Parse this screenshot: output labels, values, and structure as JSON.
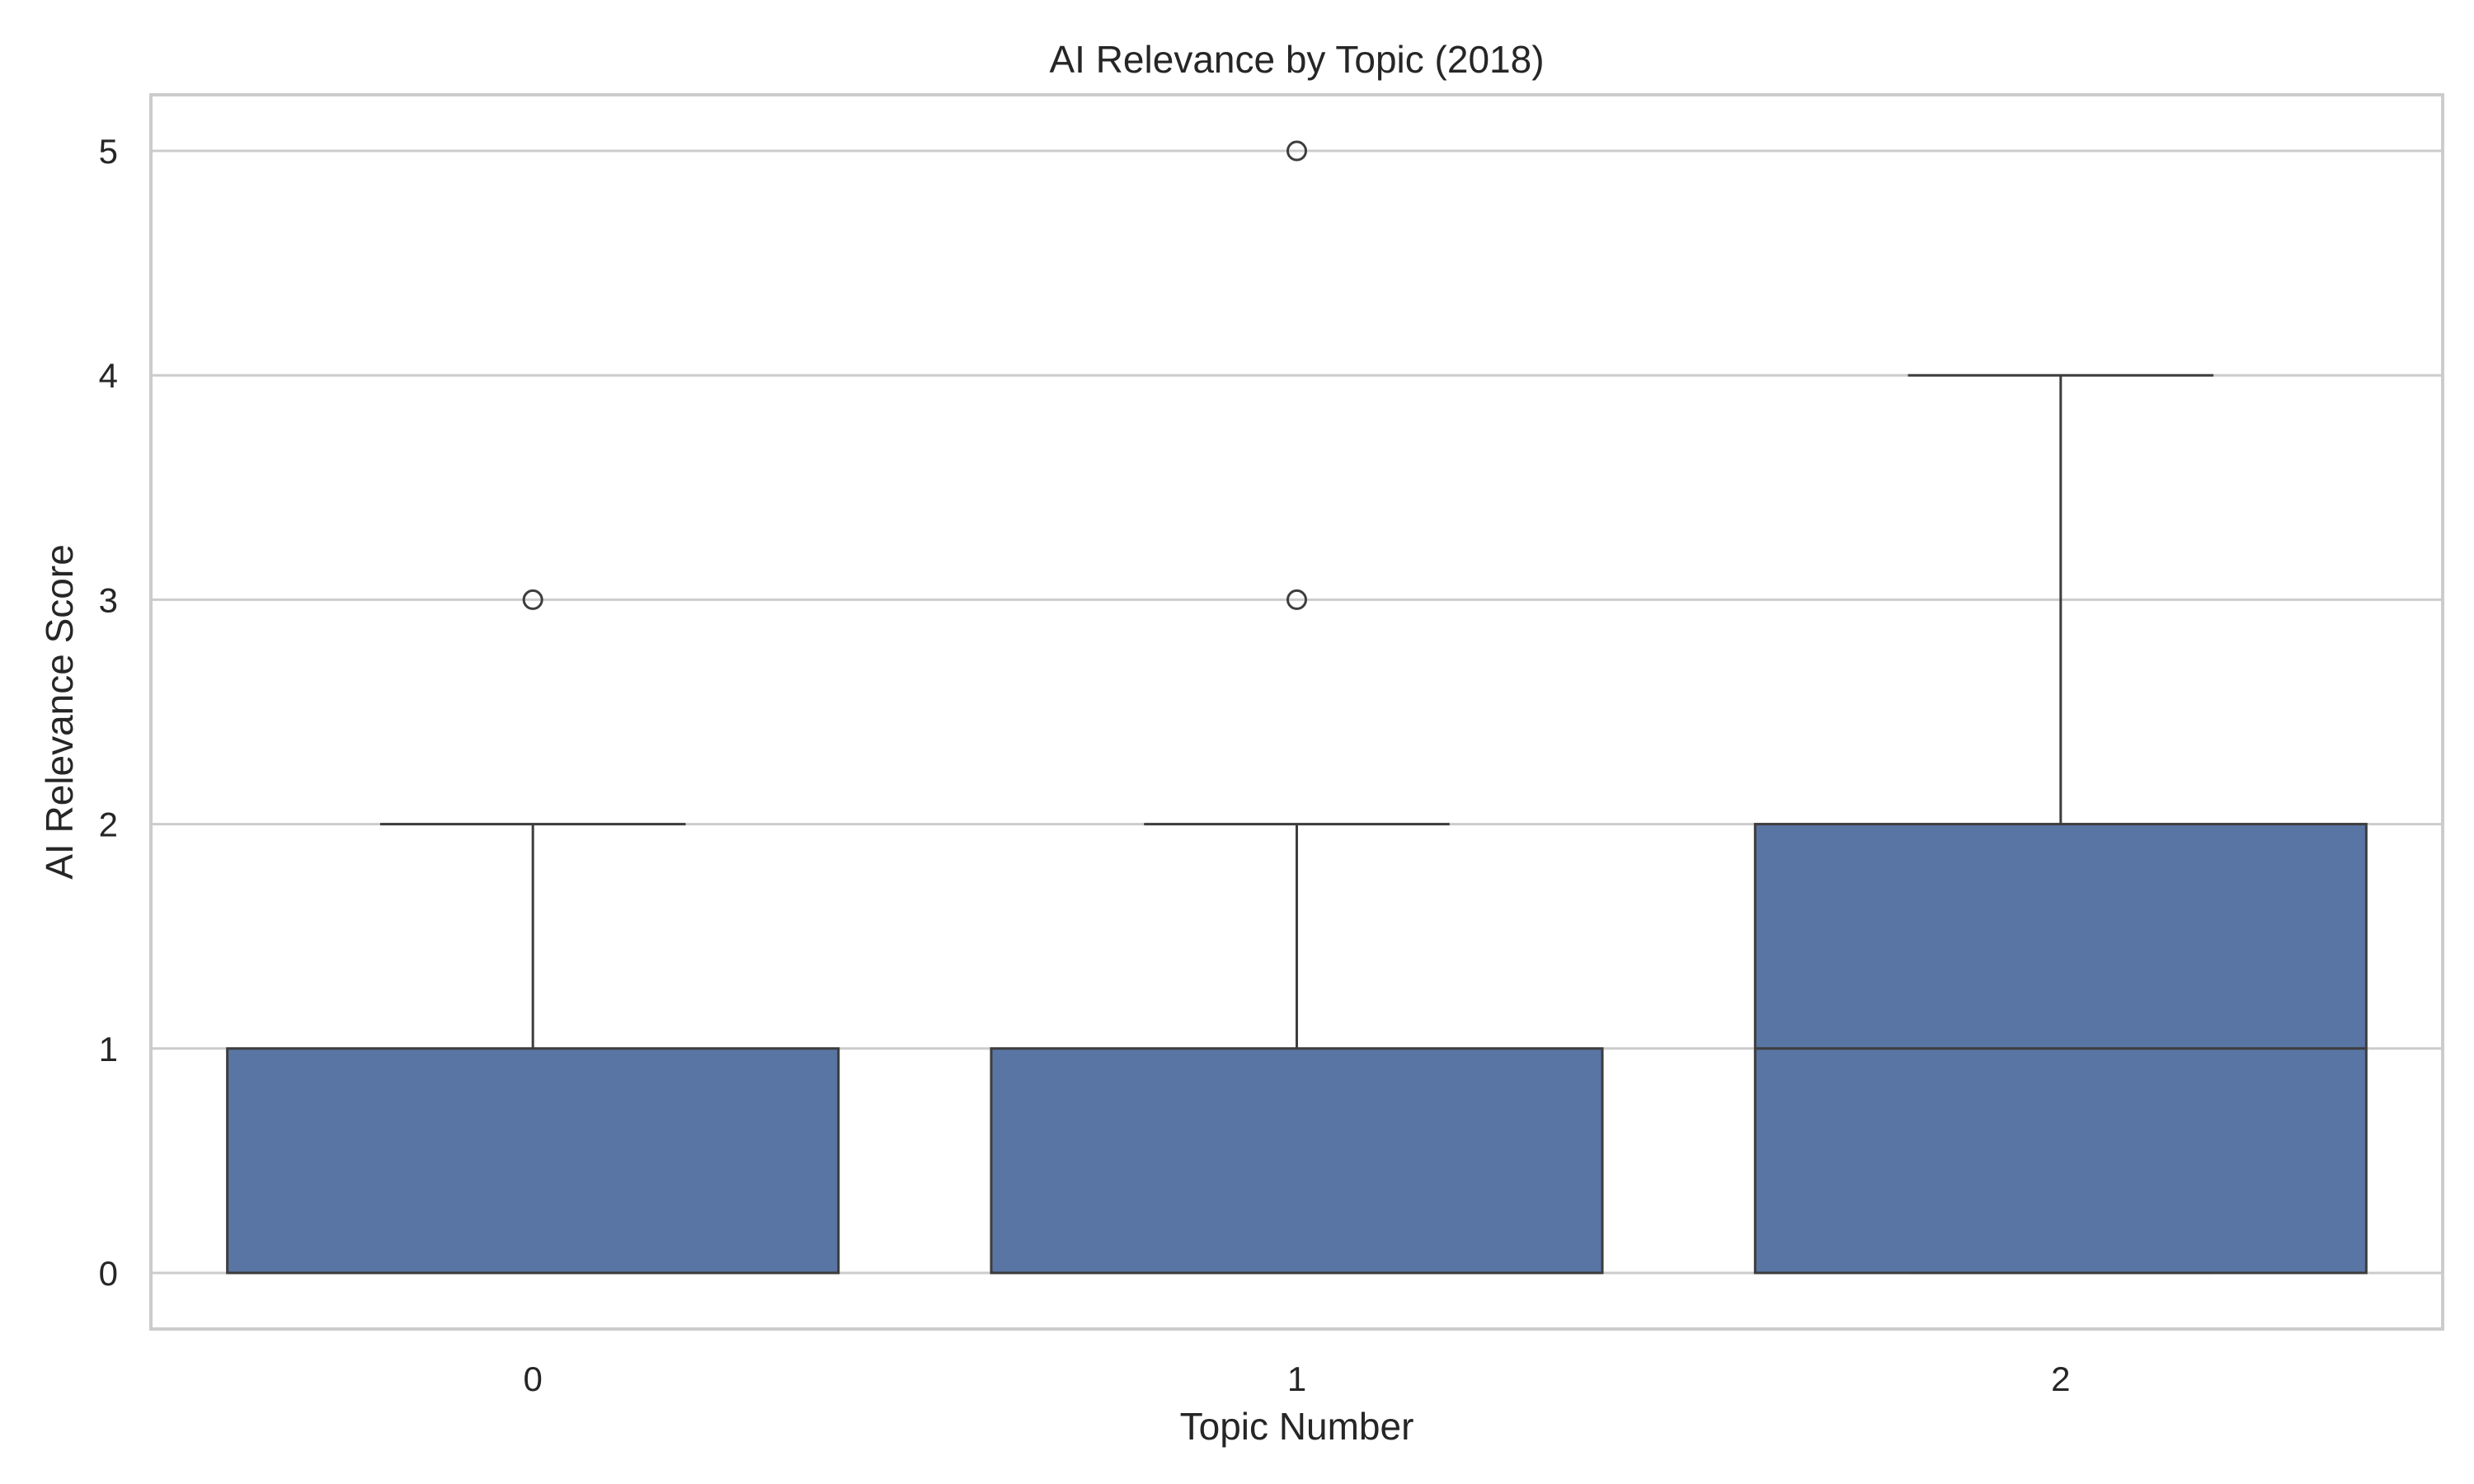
{
  "chart_data": {
    "type": "box",
    "title": "AI Relevance by Topic (2018)",
    "xlabel": "Topic Number",
    "ylabel": "AI Relevance Score",
    "categories": [
      "0",
      "1",
      "2"
    ],
    "ylim": [
      -0.25,
      5.25
    ],
    "yticks": [
      0,
      1,
      2,
      3,
      4,
      5
    ],
    "grid": true,
    "colors": {
      "box_fill": "#5975a4",
      "line": "#3d3d3d",
      "grid": "#cccccc",
      "spine": "#cccccc",
      "text": "#262626"
    },
    "boxes": [
      {
        "category": "0",
        "q1": 0,
        "median": 0,
        "q3": 1,
        "whisker_low": 0,
        "whisker_high": 2,
        "outliers": [
          3
        ]
      },
      {
        "category": "1",
        "q1": 0,
        "median": 0,
        "q3": 1,
        "whisker_low": 0,
        "whisker_high": 2,
        "outliers": [
          3,
          5
        ]
      },
      {
        "category": "2",
        "q1": 0,
        "median": 1,
        "q3": 2,
        "whisker_low": 0,
        "whisker_high": 4,
        "outliers": []
      }
    ]
  }
}
